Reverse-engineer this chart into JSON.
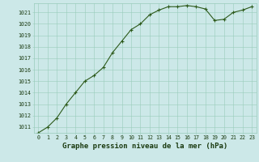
{
  "x": [
    0,
    1,
    2,
    3,
    4,
    5,
    6,
    7,
    8,
    9,
    10,
    11,
    12,
    13,
    14,
    15,
    16,
    17,
    18,
    19,
    20,
    21,
    22,
    23
  ],
  "y": [
    1010.5,
    1011.0,
    1011.8,
    1013.0,
    1014.0,
    1015.0,
    1015.5,
    1016.2,
    1017.5,
    1018.5,
    1019.5,
    1020.0,
    1020.8,
    1021.2,
    1021.5,
    1021.5,
    1021.6,
    1021.5,
    1021.3,
    1020.3,
    1020.4,
    1021.0,
    1021.2,
    1021.5
  ],
  "ylim_min": 1010.5,
  "ylim_max": 1021.8,
  "xlim_min": -0.5,
  "xlim_max": 23.5,
  "yticks": [
    1011,
    1012,
    1013,
    1014,
    1015,
    1016,
    1017,
    1018,
    1019,
    1020,
    1021
  ],
  "xticks": [
    0,
    1,
    2,
    3,
    4,
    5,
    6,
    7,
    8,
    9,
    10,
    11,
    12,
    13,
    14,
    15,
    16,
    17,
    18,
    19,
    20,
    21,
    22,
    23
  ],
  "line_color": "#2d5a1b",
  "marker": "+",
  "bg_color": "#cce8e8",
  "grid_color": "#99ccbb",
  "xlabel": "Graphe pression niveau de la mer (hPa)",
  "xlabel_color": "#1a3a10",
  "tick_label_color": "#1a3a10",
  "tick_fontsize": 4.8,
  "xlabel_fontsize": 6.5,
  "line_width": 0.8,
  "marker_size": 3.5,
  "marker_edge_width": 0.8
}
